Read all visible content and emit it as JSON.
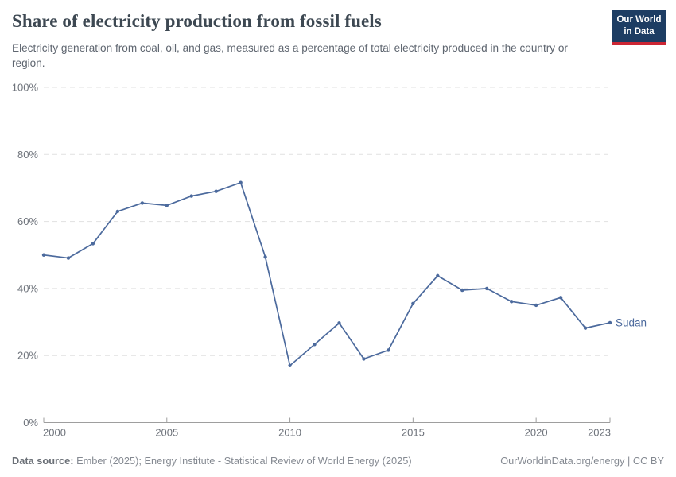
{
  "header": {
    "title": "Share of electricity production from fossil fuels",
    "subtitle": "Electricity generation from coal, oil, and gas, measured as a percentage of total electricity produced in the country or region.",
    "logo_line1": "Our World",
    "logo_line2": "in Data"
  },
  "footer": {
    "source_label": "Data source:",
    "source_text": "Ember (2025); Energy Institute - Statistical Review of World Energy (2025)",
    "url": "OurWorldinData.org/energy",
    "separator": " | ",
    "license": "CC BY"
  },
  "colors": {
    "series_blue": "#4C6A9D",
    "logo_navy": "#1d3d63",
    "logo_red": "#cc2634",
    "gridline": "#e1e1e1",
    "axis": "#9e9e9e"
  },
  "chart_data": {
    "type": "line",
    "title": "Share of electricity production from fossil fuels",
    "xlabel": "",
    "ylabel": "",
    "ylim": [
      0,
      100
    ],
    "yticks": [
      0,
      20,
      40,
      60,
      80,
      100
    ],
    "ytick_suffix": "%",
    "xticks": [
      2000,
      2005,
      2010,
      2015,
      2020,
      2023
    ],
    "grid": "horizontal-dashed",
    "legend": "end-of-line-label",
    "x": [
      2000,
      2001,
      2002,
      2003,
      2004,
      2005,
      2006,
      2007,
      2008,
      2009,
      2010,
      2011,
      2012,
      2013,
      2014,
      2015,
      2016,
      2017,
      2018,
      2019,
      2020,
      2021,
      2022,
      2023
    ],
    "series": [
      {
        "name": "Sudan",
        "color": "#4C6A9D",
        "values": [
          50.0,
          49.1,
          53.4,
          63.0,
          65.5,
          64.8,
          67.6,
          69.0,
          71.6,
          49.4,
          17.0,
          23.3,
          29.7,
          19.0,
          21.6,
          35.5,
          43.8,
          39.5,
          40.0,
          36.1,
          35.0,
          37.3,
          28.2,
          29.8
        ]
      }
    ]
  }
}
